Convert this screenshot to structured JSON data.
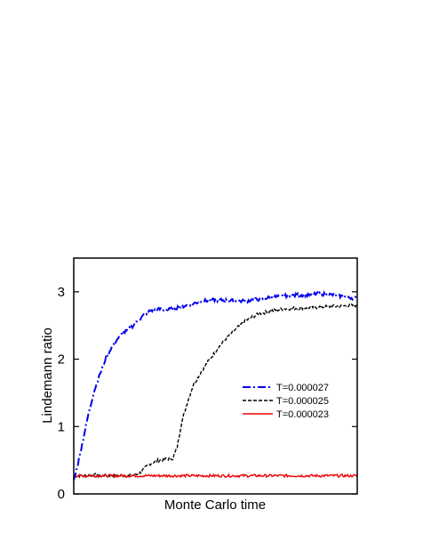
{
  "chart_data": {
    "type": "line",
    "title": "",
    "xlabel": "Monte Carlo time",
    "ylabel": "Lindemann ratio",
    "xlim": [
      0,
      100
    ],
    "ylim": [
      0,
      3.5
    ],
    "yticks": [
      0,
      1,
      2,
      3
    ],
    "x_tick_labels_shown": false,
    "grid": false,
    "legend_position": "right-middle",
    "series": [
      {
        "name": "T=0.000027",
        "color": "#0000ee",
        "style": "dash-dot",
        "points": [
          [
            0,
            0.2
          ],
          [
            1.5,
            0.45
          ],
          [
            3,
            0.75
          ],
          [
            5,
            1.15
          ],
          [
            7,
            1.5
          ],
          [
            9,
            1.75
          ],
          [
            11,
            1.98
          ],
          [
            13,
            2.15
          ],
          [
            15,
            2.28
          ],
          [
            17,
            2.37
          ],
          [
            19,
            2.43
          ],
          [
            21,
            2.5
          ],
          [
            23,
            2.58
          ],
          [
            25,
            2.67
          ],
          [
            27,
            2.72
          ],
          [
            30,
            2.74
          ],
          [
            33,
            2.73
          ],
          [
            36,
            2.76
          ],
          [
            40,
            2.8
          ],
          [
            45,
            2.86
          ],
          [
            50,
            2.88
          ],
          [
            55,
            2.87
          ],
          [
            60,
            2.86
          ],
          [
            65,
            2.89
          ],
          [
            70,
            2.92
          ],
          [
            75,
            2.94
          ],
          [
            80,
            2.95
          ],
          [
            85,
            2.97
          ],
          [
            90,
            2.96
          ],
          [
            95,
            2.93
          ],
          [
            100,
            2.9
          ]
        ]
      },
      {
        "name": "T=0.000025",
        "color": "#000000",
        "style": "dashed",
        "points": [
          [
            0,
            0.27
          ],
          [
            10,
            0.28
          ],
          [
            20,
            0.27
          ],
          [
            23,
            0.3
          ],
          [
            25,
            0.38
          ],
          [
            27,
            0.45
          ],
          [
            30,
            0.5
          ],
          [
            33,
            0.52
          ],
          [
            35,
            0.53
          ],
          [
            36.5,
            0.7
          ],
          [
            38,
            1.05
          ],
          [
            40,
            1.35
          ],
          [
            42,
            1.6
          ],
          [
            45,
            1.82
          ],
          [
            48,
            2.0
          ],
          [
            51,
            2.17
          ],
          [
            54,
            2.32
          ],
          [
            57,
            2.44
          ],
          [
            60,
            2.55
          ],
          [
            63,
            2.63
          ],
          [
            66,
            2.68
          ],
          [
            70,
            2.72
          ],
          [
            75,
            2.75
          ],
          [
            80,
            2.76
          ],
          [
            85,
            2.77
          ],
          [
            90,
            2.78
          ],
          [
            95,
            2.79
          ],
          [
            100,
            2.8
          ]
        ]
      },
      {
        "name": "T=0.000023",
        "color": "#ee0000",
        "style": "solid",
        "points": [
          [
            0,
            0.27
          ],
          [
            10,
            0.27
          ],
          [
            20,
            0.27
          ],
          [
            30,
            0.27
          ],
          [
            40,
            0.27
          ],
          [
            50,
            0.27
          ],
          [
            60,
            0.27
          ],
          [
            70,
            0.27
          ],
          [
            80,
            0.27
          ],
          [
            90,
            0.27
          ],
          [
            100,
            0.27
          ]
        ]
      }
    ]
  }
}
